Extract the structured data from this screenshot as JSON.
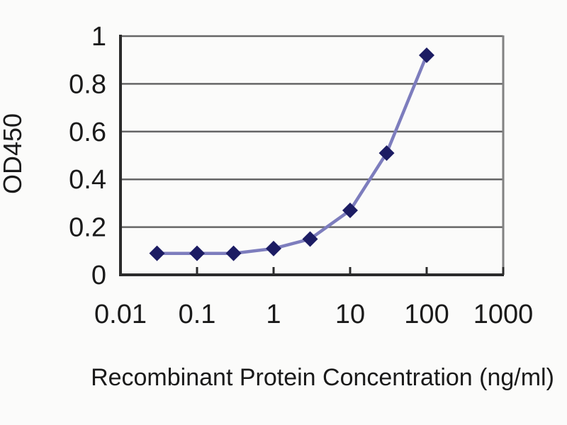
{
  "figure": {
    "background": "#fbfbfa",
    "kind": "ELISA standard curve"
  },
  "chart_data": {
    "type": "line",
    "x": [
      0.03,
      0.1,
      0.3,
      1,
      3,
      10,
      30,
      100
    ],
    "series": [
      {
        "name": "OD450",
        "values": [
          0.09,
          0.09,
          0.09,
          0.11,
          0.15,
          0.27,
          0.51,
          0.92
        ]
      }
    ],
    "title": "",
    "xlabel": "Recombinant Protein Concentration (ng/ml)",
    "ylabel": "OD450",
    "x_scale": "log",
    "xlim": [
      0.01,
      1000
    ],
    "ylim": [
      0,
      1
    ],
    "x_ticks": [
      0.01,
      0.1,
      1,
      10,
      100,
      1000
    ],
    "x_tick_labels": [
      "0.01",
      "0.1",
      "1",
      "10",
      "100",
      "1000"
    ],
    "y_ticks": [
      0,
      0.2,
      0.4,
      0.6,
      0.8,
      1
    ],
    "y_tick_labels": [
      "0",
      "0.2",
      "0.4",
      "0.6",
      "0.8",
      "1"
    ],
    "grid": "horizontal",
    "legend_position": "none",
    "marker": "diamond",
    "colors": {
      "line": "#7d7dbd",
      "marker": "#1c1c63",
      "gridline": "#666666",
      "axis": "#2b2b2b",
      "right_spine": "#828282",
      "tick_text": "#1a1a1a"
    }
  }
}
